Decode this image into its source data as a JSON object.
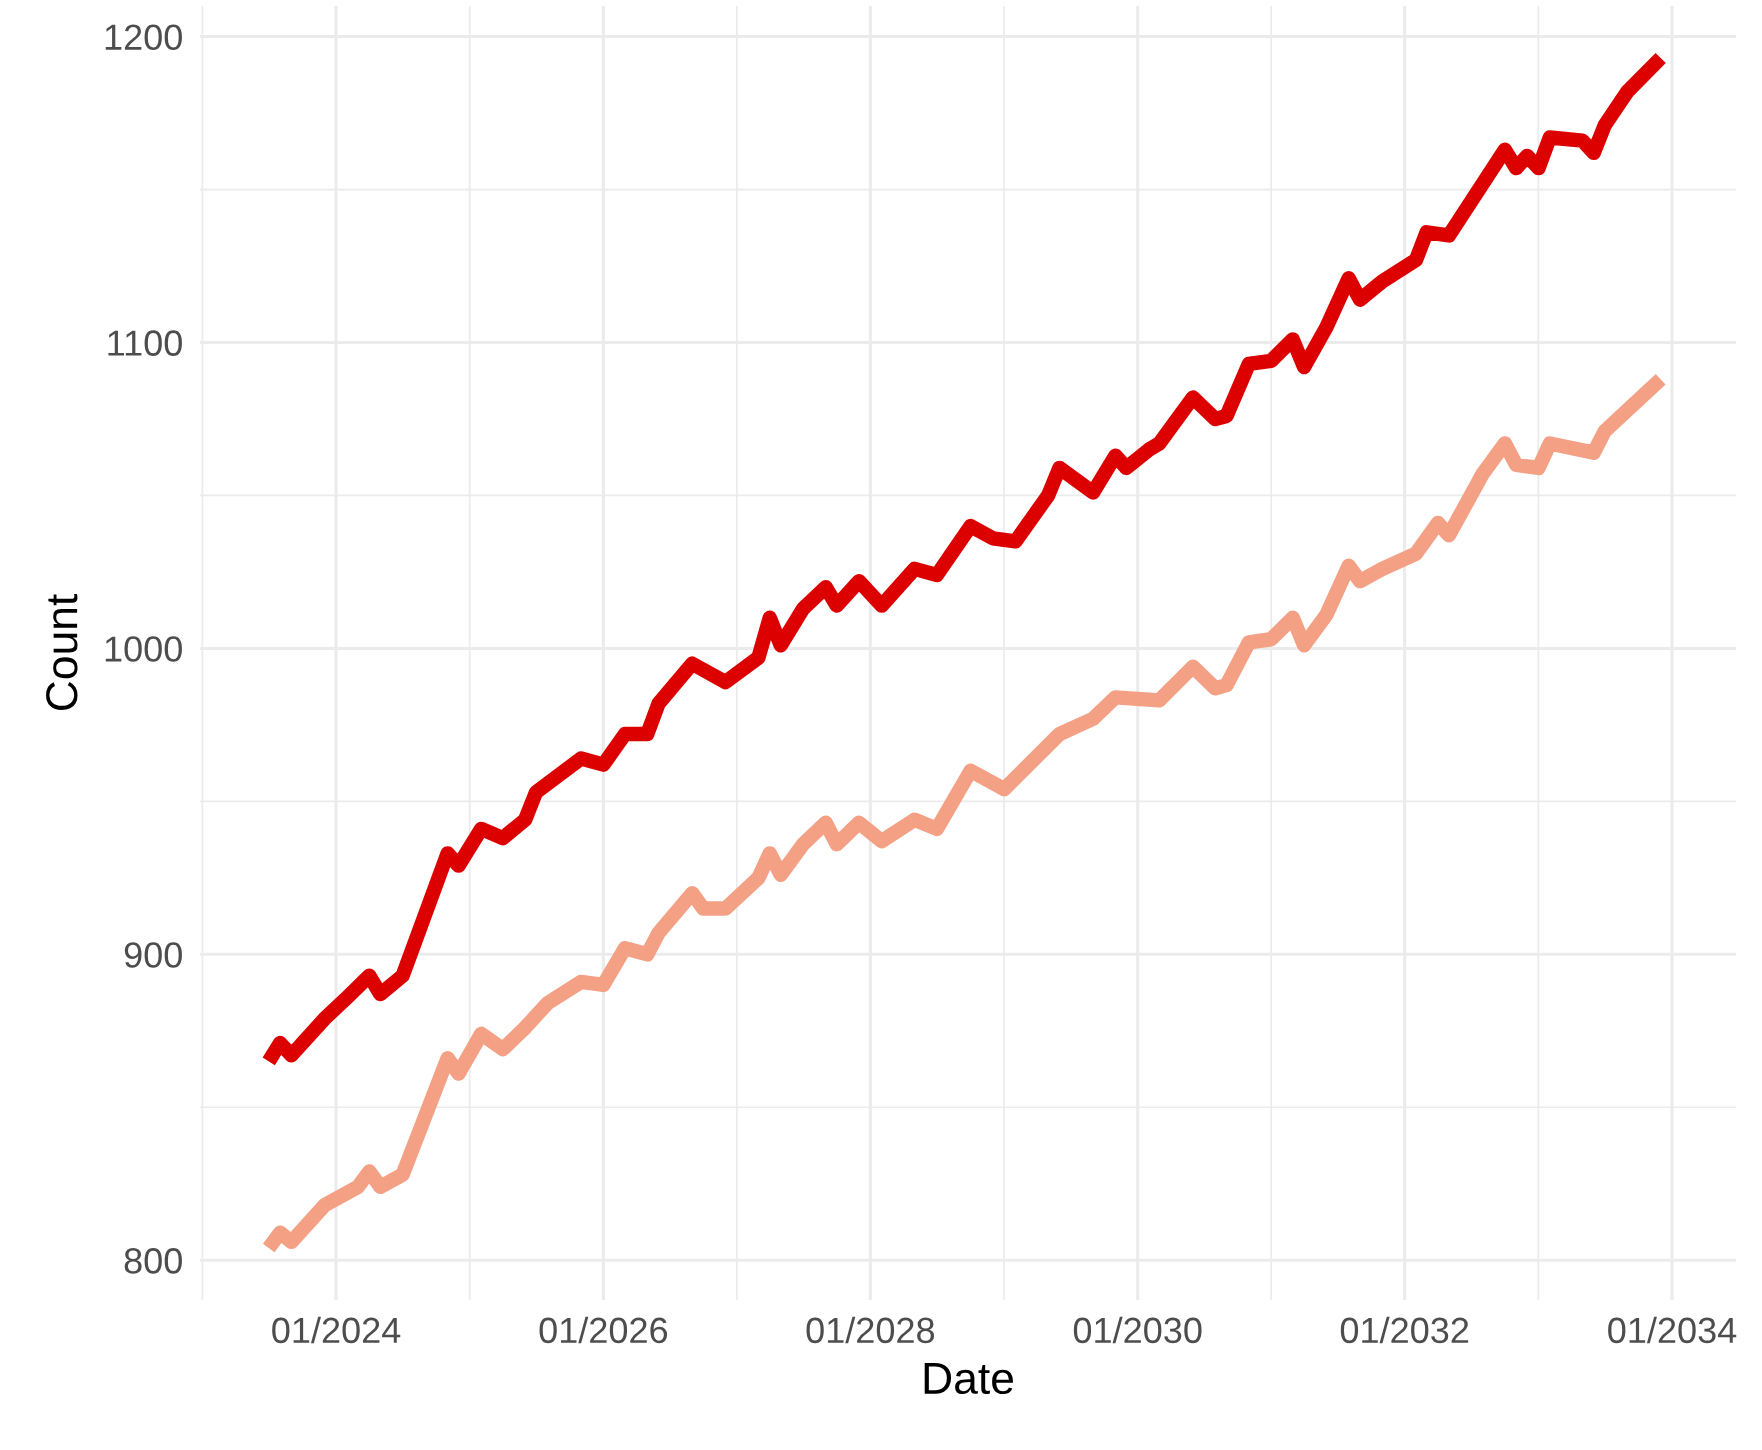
{
  "chart_data": {
    "type": "line",
    "xlabel": "Date",
    "ylabel": "Count",
    "series": [
      {
        "color": "#dd0000",
        "x": [
          "2023-07",
          "2023-08",
          "2023-09",
          "2023-12",
          "2024-02",
          "2024-04",
          "2024-05",
          "2024-07",
          "2024-11",
          "2024-12",
          "2025-02",
          "2025-04",
          "2025-06",
          "2025-07",
          "2025-11",
          "2026-01",
          "2026-03",
          "2026-05",
          "2026-06",
          "2026-09",
          "2026-12",
          "2027-03",
          "2027-04",
          "2027-05",
          "2027-07",
          "2027-09",
          "2027-10",
          "2027-12",
          "2028-01",
          "2028-02",
          "2028-05",
          "2028-07",
          "2028-10",
          "2028-12",
          "2029-02",
          "2029-05",
          "2029-06",
          "2029-09",
          "2029-11",
          "2029-12",
          "2030-02",
          "2030-03",
          "2030-06",
          "2030-08",
          "2030-09",
          "2030-11",
          "2031-01",
          "2031-03",
          "2031-04",
          "2031-06",
          "2031-08",
          "2031-09",
          "2031-11",
          "2032-02",
          "2032-03",
          "2032-05",
          "2032-10",
          "2032-11",
          "2032-12",
          "2033-01",
          "2033-02",
          "2033-05",
          "2033-06",
          "2033-07",
          "2033-09",
          "2033-12"
        ],
        "values": [
          865,
          871,
          867,
          879,
          886,
          893,
          887,
          893,
          933,
          929,
          941,
          938,
          944,
          953,
          964,
          962,
          972,
          972,
          982,
          995,
          989,
          997,
          1010,
          1001,
          1013,
          1020,
          1014,
          1022,
          1018,
          1014,
          1026,
          1024,
          1040,
          1036,
          1035,
          1050,
          1059,
          1051,
          1063,
          1059,
          1065,
          1067,
          1082,
          1075,
          1076,
          1093,
          1094,
          1101,
          1092,
          1105,
          1121,
          1114,
          1120,
          1127,
          1136,
          1135,
          1163,
          1157,
          1161,
          1157,
          1167,
          1166,
          1162,
          1171,
          1182,
          1193
        ]
      },
      {
        "color": "#f4a085",
        "x": [
          "2023-07",
          "2023-08",
          "2023-09",
          "2023-12",
          "2024-03",
          "2024-04",
          "2024-05",
          "2024-07",
          "2024-11",
          "2024-12",
          "2025-02",
          "2025-04",
          "2025-06",
          "2025-08",
          "2025-11",
          "2026-01",
          "2026-03",
          "2026-05",
          "2026-06",
          "2026-09",
          "2026-10",
          "2026-12",
          "2027-03",
          "2027-04",
          "2027-05",
          "2027-07",
          "2027-09",
          "2027-10",
          "2027-12",
          "2028-02",
          "2028-05",
          "2028-07",
          "2028-10",
          "2029-01",
          "2029-06",
          "2029-09",
          "2029-11",
          "2030-03",
          "2030-06",
          "2030-08",
          "2030-09",
          "2030-11",
          "2031-01",
          "2031-03",
          "2031-04",
          "2031-06",
          "2031-08",
          "2031-09",
          "2031-11",
          "2032-02",
          "2032-04",
          "2032-05",
          "2032-08",
          "2032-10",
          "2032-11",
          "2033-01",
          "2033-02",
          "2033-06",
          "2033-07",
          "2033-12"
        ],
        "values": [
          804,
          809,
          806,
          818,
          824,
          829,
          824,
          828,
          866,
          861,
          874,
          869,
          876,
          884,
          891,
          890,
          902,
          900,
          907,
          920,
          915,
          915,
          925,
          933,
          926,
          936,
          943,
          936,
          943,
          937,
          944,
          941,
          960,
          954,
          972,
          977,
          984,
          983,
          994,
          987,
          988,
          1002,
          1003,
          1010,
          1001,
          1011,
          1027,
          1022,
          1026,
          1031,
          1041,
          1037,
          1057,
          1067,
          1060,
          1059,
          1067,
          1064,
          1071,
          1088
        ]
      }
    ],
    "xlim": [
      "2022-12-25",
      "2034-06-25"
    ],
    "xticks": [
      {
        "value": "2024-01-01",
        "label": "01/2024"
      },
      {
        "value": "2026-01-01",
        "label": "01/2026"
      },
      {
        "value": "2028-01-01",
        "label": "01/2028"
      },
      {
        "value": "2030-01-01",
        "label": "01/2030"
      },
      {
        "value": "2032-01-01",
        "label": "01/2032"
      },
      {
        "value": "2034-01-01",
        "label": "01/2034"
      }
    ],
    "ylim": [
      787,
      1210
    ],
    "yticks": [
      800,
      900,
      1000,
      1100,
      1200
    ],
    "grid": true,
    "line_style": "solid",
    "marker": "none"
  }
}
